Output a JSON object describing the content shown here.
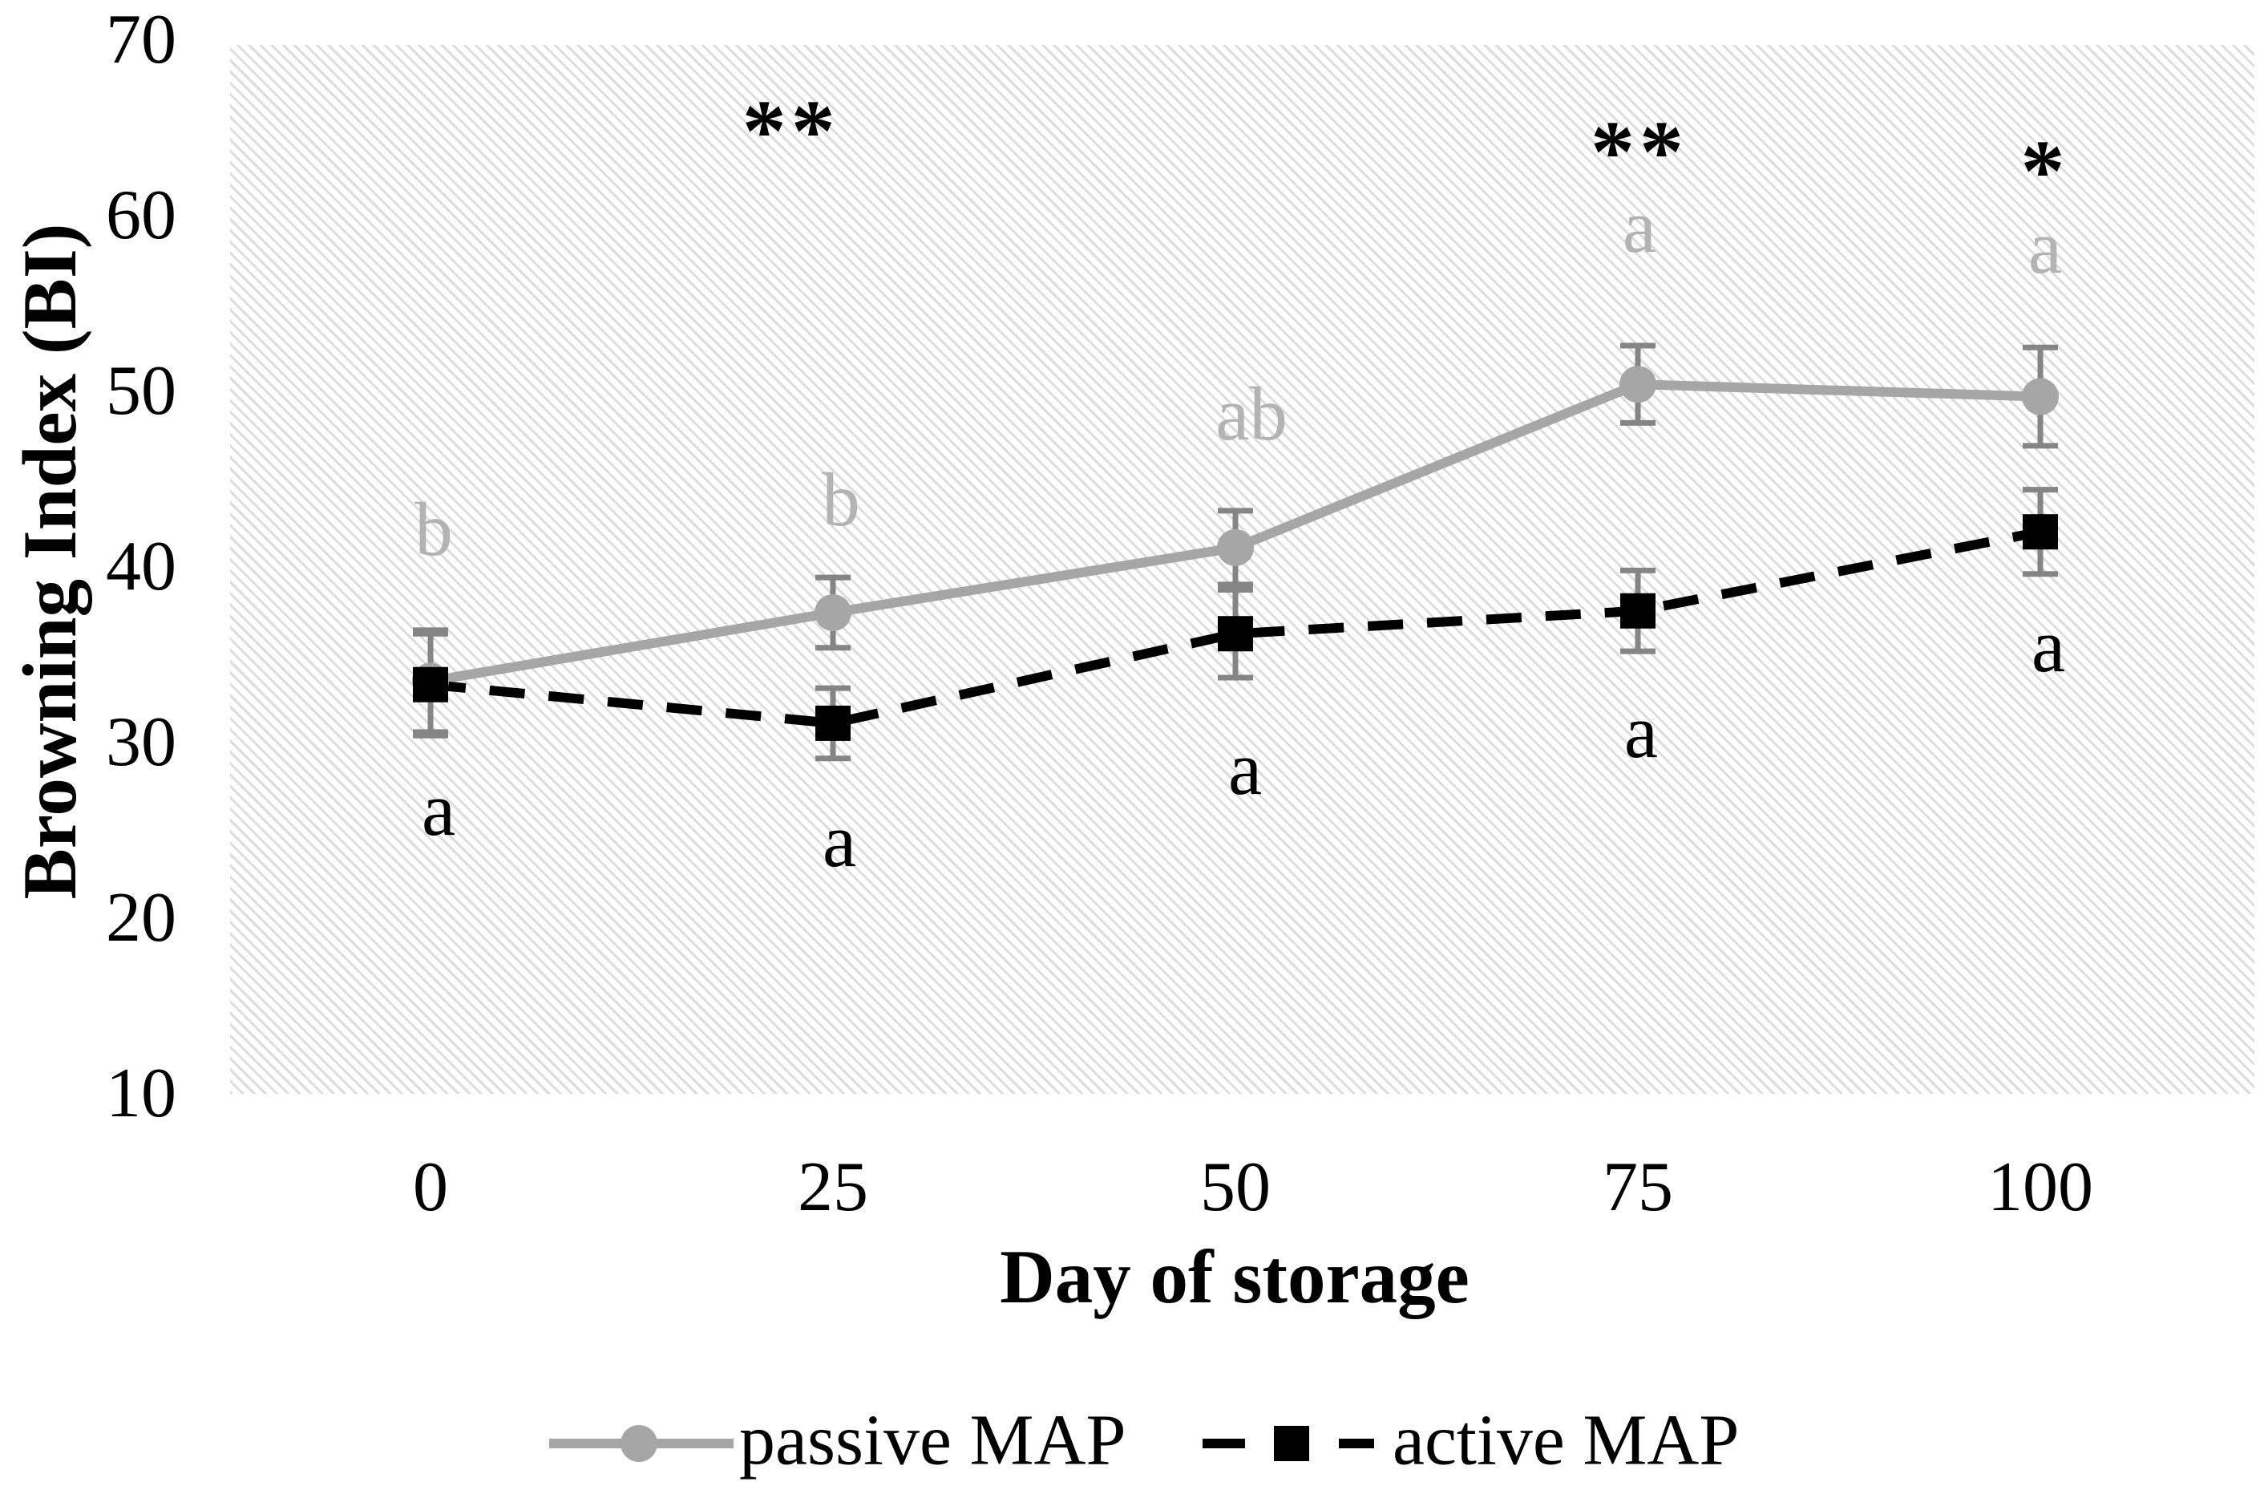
{
  "chart_data": {
    "type": "line",
    "title": "",
    "xlabel": "Day of storage",
    "ylabel": "Browning Index (BI)",
    "x": [
      0,
      25,
      50,
      75,
      100
    ],
    "x_ticks": [
      "0",
      "25",
      "50",
      "75",
      "100"
    ],
    "y_ticks": [
      "10",
      "20",
      "30",
      "40",
      "50",
      "60",
      "70"
    ],
    "ylim": [
      10,
      70
    ],
    "grid": "none",
    "plot_background": "diagonal-hatch",
    "legend_position": "bottom-center",
    "series": [
      {
        "name": "passive MAP",
        "marker": "circle",
        "line_style": "solid",
        "values": [
          33.5,
          37.4,
          41.1,
          50.4,
          49.7
        ],
        "errors": [
          2.9,
          2.0,
          2.1,
          2.2,
          2.8
        ],
        "letters": [
          {
            "text": "b",
            "x": 0.2,
            "y": 41.9
          },
          {
            "text": "b",
            "x": 25.5,
            "y": 43.6
          },
          {
            "text": "ab",
            "x": 51.0,
            "y": 48.5
          },
          {
            "text": "a",
            "x": 75.1,
            "y": 59.2
          },
          {
            "text": "a",
            "x": 100.3,
            "y": 58.0
          }
        ]
      },
      {
        "name": "active MAP",
        "marker": "square",
        "line_style": "dashed",
        "values": [
          33.3,
          31.1,
          36.2,
          37.5,
          42.0
        ],
        "errors": [
          2.9,
          2.0,
          2.5,
          2.3,
          2.4
        ],
        "letters": [
          {
            "text": "a",
            "x": 0.5,
            "y": 26.0
          },
          {
            "text": "a",
            "x": 25.4,
            "y": 24.2
          },
          {
            "text": "a",
            "x": 50.6,
            "y": 28.3
          },
          {
            "text": "a",
            "x": 75.2,
            "y": 30.4
          },
          {
            "text": "a",
            "x": 100.5,
            "y": 35.3
          }
        ]
      }
    ],
    "annotations": [
      {
        "text": "**",
        "x": 22.4,
        "y": 66.0
      },
      {
        "text": "**",
        "x": 75.1,
        "y": 64.8
      },
      {
        "text": "*",
        "x": 100.3,
        "y": 63.7
      }
    ]
  },
  "colors": {
    "passive_series": "#a6a6a6",
    "active_series": "#000000",
    "error_bar": "#858585",
    "gray_letter": "#b3b3b3",
    "black_letter": "#000000",
    "hatch": "#dcdcdc"
  },
  "legend": {
    "passive_label": "passive MAP",
    "active_label": "active MAP"
  }
}
